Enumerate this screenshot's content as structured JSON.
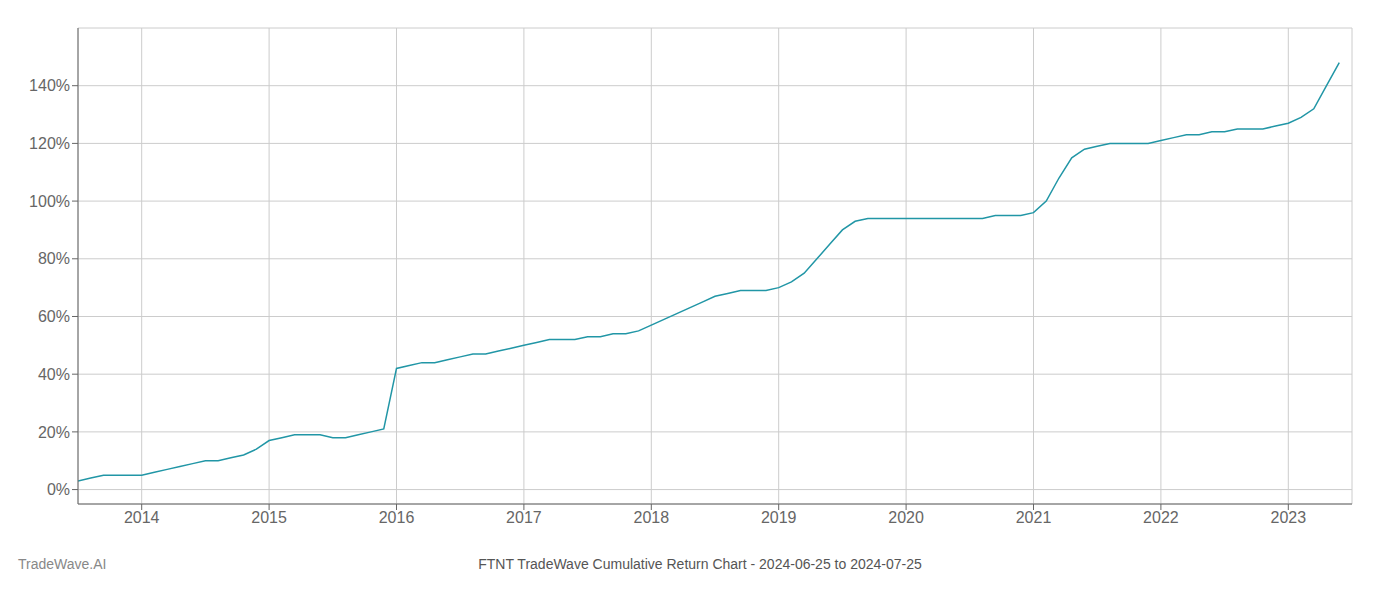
{
  "chart_data": {
    "type": "line",
    "title": "FTNT TradeWave Cumulative Return Chart - 2024-06-25 to 2024-07-25",
    "annotations": [
      "TradeWave.AI"
    ],
    "color": "#2196a6",
    "grid": true,
    "x": [
      2013.5,
      2013.6,
      2013.7,
      2013.8,
      2013.9,
      2014.0,
      2014.1,
      2014.2,
      2014.3,
      2014.4,
      2014.5,
      2014.6,
      2014.7,
      2014.8,
      2014.9,
      2015.0,
      2015.1,
      2015.2,
      2015.3,
      2015.4,
      2015.5,
      2015.6,
      2015.7,
      2015.8,
      2015.9,
      2016.0,
      2016.1,
      2016.2,
      2016.3,
      2016.4,
      2016.5,
      2016.6,
      2016.7,
      2016.8,
      2016.9,
      2017.0,
      2017.1,
      2017.2,
      2017.3,
      2017.4,
      2017.5,
      2017.6,
      2017.7,
      2017.8,
      2017.9,
      2018.0,
      2018.1,
      2018.2,
      2018.3,
      2018.4,
      2018.5,
      2018.6,
      2018.7,
      2018.8,
      2018.9,
      2019.0,
      2019.1,
      2019.2,
      2019.3,
      2019.4,
      2019.5,
      2019.6,
      2019.7,
      2019.8,
      2019.9,
      2020.0,
      2020.1,
      2020.2,
      2020.3,
      2020.4,
      2020.5,
      2020.6,
      2020.7,
      2020.8,
      2020.9,
      2021.0,
      2021.1,
      2021.2,
      2021.3,
      2021.4,
      2021.5,
      2021.6,
      2021.7,
      2021.8,
      2021.9,
      2022.0,
      2022.1,
      2022.2,
      2022.3,
      2022.4,
      2022.5,
      2022.6,
      2022.7,
      2022.8,
      2022.9,
      2023.0,
      2023.1,
      2023.2,
      2023.3,
      2023.4
    ],
    "values": [
      3,
      4,
      5,
      5,
      5,
      5,
      6,
      7,
      8,
      9,
      10,
      10,
      11,
      12,
      14,
      17,
      18,
      19,
      19,
      19,
      18,
      18,
      19,
      20,
      21,
      42,
      43,
      44,
      44,
      45,
      46,
      47,
      47,
      48,
      49,
      50,
      51,
      52,
      52,
      52,
      53,
      53,
      54,
      54,
      55,
      57,
      59,
      61,
      63,
      65,
      67,
      68,
      69,
      69,
      69,
      70,
      72,
      75,
      80,
      85,
      90,
      93,
      94,
      94,
      94,
      94,
      94,
      94,
      94,
      94,
      94,
      94,
      95,
      95,
      95,
      96,
      100,
      108,
      115,
      118,
      119,
      120,
      120,
      120,
      120,
      121,
      122,
      123,
      123,
      124,
      124,
      125,
      125,
      125,
      126,
      127,
      129,
      132,
      140,
      148
    ],
    "xlim": [
      2013.5,
      2023.5
    ],
    "xticks": [
      2014,
      2015,
      2016,
      2017,
      2018,
      2019,
      2020,
      2021,
      2022,
      2023
    ],
    "ylim": [
      -5,
      160
    ],
    "yticks": [
      {
        "value": 0,
        "label": "0%"
      },
      {
        "value": 20,
        "label": "20%"
      },
      {
        "value": 40,
        "label": "40%"
      },
      {
        "value": 60,
        "label": "60%"
      },
      {
        "value": 80,
        "label": "80%"
      },
      {
        "value": 100,
        "label": "100%"
      },
      {
        "value": 120,
        "label": "120%"
      },
      {
        "value": 140,
        "label": "140%"
      }
    ]
  }
}
